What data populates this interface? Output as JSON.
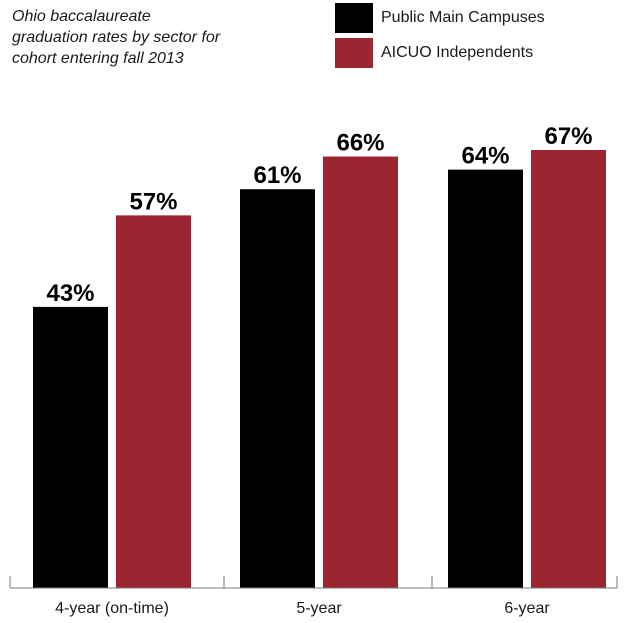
{
  "title_lines": [
    "Ohio baccalaureate",
    "graduation rates by sector for",
    "cohort entering fall 2013"
  ],
  "chart_data": {
    "type": "bar",
    "categories": [
      "4-year (on-time)",
      "5-year",
      "6-year"
    ],
    "series": [
      {
        "name": "Public Main Campuses",
        "color": "#000000",
        "values": [
          43,
          61,
          64
        ],
        "labels": [
          "43%",
          "61%",
          "64%"
        ]
      },
      {
        "name": "AICUO Independents",
        "color": "#9b2530",
        "values": [
          57,
          66,
          67
        ],
        "labels": [
          "57%",
          "66%",
          "67%"
        ]
      }
    ],
    "ylim": [
      0,
      100
    ],
    "grid": false,
    "legend": "top-right"
  }
}
